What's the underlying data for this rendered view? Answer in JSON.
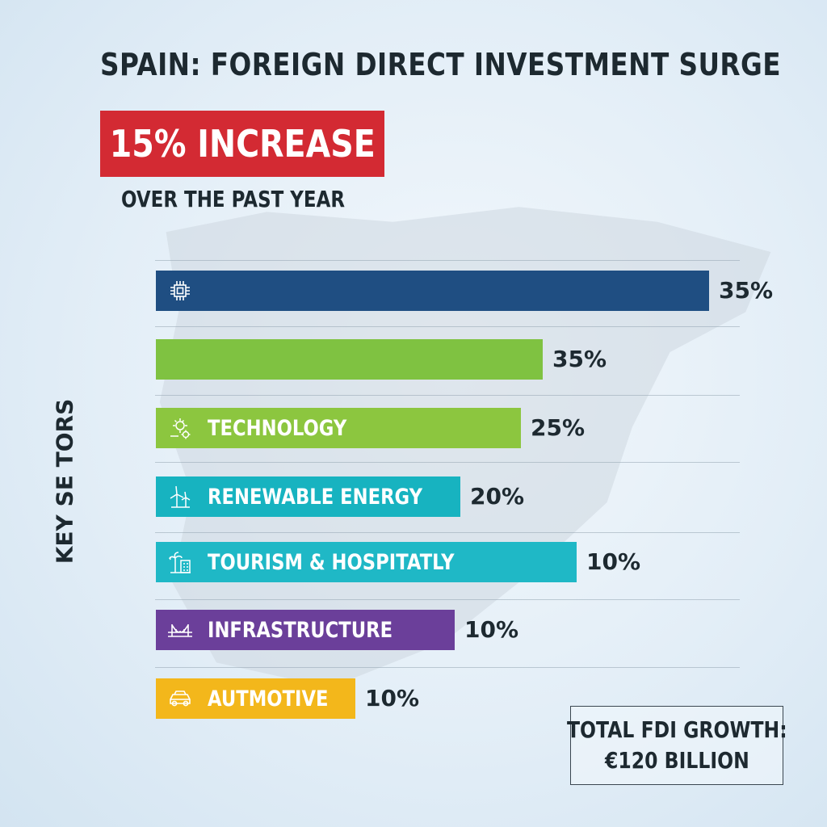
{
  "title": "SPAIN: FOREIGN DIRECT INVESTMENT SURGE",
  "highlight": {
    "text": "15% INCREASE",
    "color": "#d32a33"
  },
  "subtitle": "OVER THE PAST YEAR",
  "total": {
    "line1": "TOTAL FDI GROWTH:",
    "line2": "€120 BILLION"
  },
  "chart_data": {
    "type": "bar",
    "orientation": "horizontal",
    "title": "SPAIN: FOREIGN DIRECT INVESTMENT SURGE",
    "ylabel": "KEY SE TORS",
    "grid": true,
    "categories": [
      "",
      "",
      "TECHNOLOGY",
      "RENEWABLE ENERGY",
      "TOURISM & HOSPITATLY",
      "INFRASTRUCTURE",
      "AUTMOTIVE"
    ],
    "values": [
      35,
      35,
      25,
      20,
      10,
      10,
      10
    ],
    "value_labels": [
      "35%",
      "35%",
      "25%",
      "20%",
      "10%",
      "10%",
      "10%"
    ],
    "bar_lengths_relative": [
      1.0,
      0.7,
      0.66,
      0.55,
      0.76,
      0.54,
      0.36
    ],
    "colors": [
      "#1f4e82",
      "#7fc241",
      "#8cc63f",
      "#17b3c0",
      "#1fb8c6",
      "#6b3f9a",
      "#f3b71b"
    ],
    "icons": [
      "chip-icon",
      "",
      "sun-gear-icon",
      "wind-turbine-icon",
      "palm-building-icon",
      "bridge-icon",
      "car-icon"
    ]
  }
}
